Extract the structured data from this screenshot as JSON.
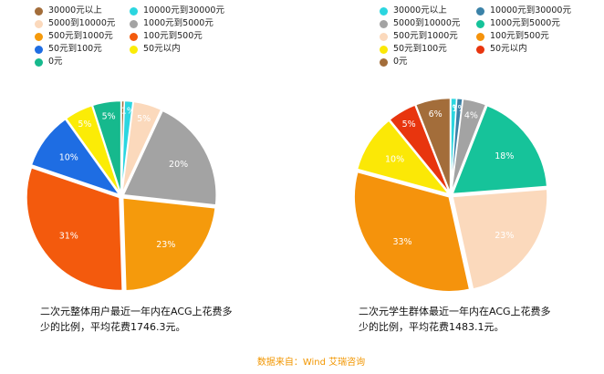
{
  "source_text": "数据来自：Wind 艾瑞咨询",
  "chart_data": [
    {
      "type": "pie",
      "caption_lines": [
        "二次元整体用户最近一年内在ACG上花费多",
        "少的比例，平均花费1746.3元。"
      ],
      "legend_order": [
        "30000元以上",
        "10000元到30000元",
        "5000到10000元",
        "1000元到5000元",
        "500元到1000元",
        "100元到500元",
        "50元到100元",
        "50元以内",
        "0元"
      ],
      "slices": [
        {
          "label": "30000元以上",
          "value": 0.5,
          "color": "#a36d3a",
          "display": ""
        },
        {
          "label": "10000元到30000元",
          "value": 1.5,
          "color": "#2bd6e0",
          "display": "1%"
        },
        {
          "label": "5000到10000元",
          "value": 5,
          "color": "#fbd9bc",
          "display": "5%"
        },
        {
          "label": "1000元到5000元",
          "value": 20,
          "color": "#a3a3a3",
          "display": "20%"
        },
        {
          "label": "500元到1000元",
          "value": 23,
          "color": "#f59a0c",
          "display": "23%"
        },
        {
          "label": "100元到500元",
          "value": 31,
          "color": "#f35a0d",
          "display": "31%"
        },
        {
          "label": "50元到100元",
          "value": 10,
          "color": "#1e6de3",
          "display": "10%"
        },
        {
          "label": "50元以内",
          "value": 5,
          "color": "#fbec06",
          "display": "5%"
        },
        {
          "label": "0元",
          "value": 5,
          "color": "#16b98d",
          "display": "5%"
        }
      ]
    },
    {
      "type": "pie",
      "caption_lines": [
        "二次元学生群体最近一年内在ACG上花费多",
        "少的比例，平均花费1483.1元。"
      ],
      "legend_order": [
        "30000元以上",
        "10000元到30000元",
        "5000到10000元",
        "1000元到5000元",
        "500元到1000元",
        "100元到500元",
        "50元到100元",
        "50元以内",
        "0元"
      ],
      "slices": [
        {
          "label": "30000元以上",
          "value": 1,
          "color": "#2bd6e0",
          "display": "1%"
        },
        {
          "label": "10000元到30000元",
          "value": 1,
          "color": "#3b82a8",
          "display": "1%"
        },
        {
          "label": "5000到10000元",
          "value": 4,
          "color": "#a3a3a3",
          "display": "4%"
        },
        {
          "label": "1000元到5000元",
          "value": 18,
          "color": "#16c39a",
          "display": "18%"
        },
        {
          "label": "500元到1000元",
          "value": 23,
          "color": "#fbd9bc",
          "display": "23%"
        },
        {
          "label": "100元到500元",
          "value": 33,
          "color": "#f5930c",
          "display": "33%"
        },
        {
          "label": "50元到100元",
          "value": 10,
          "color": "#fbe806",
          "display": "10%"
        },
        {
          "label": "50元以内",
          "value": 5,
          "color": "#e8350e",
          "display": "5%"
        },
        {
          "label": "0元",
          "value": 6,
          "color": "#a36d3a",
          "display": "6%"
        }
      ]
    }
  ]
}
